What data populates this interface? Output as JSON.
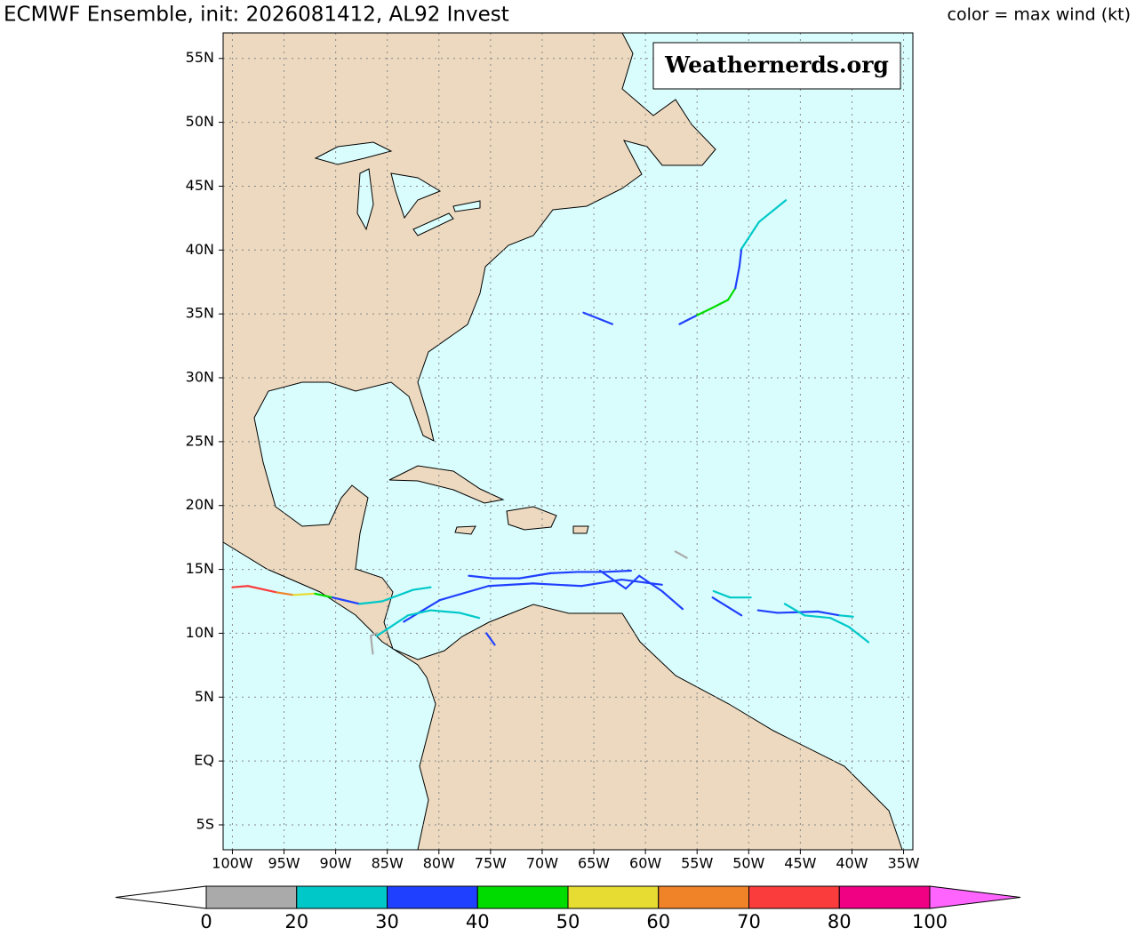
{
  "map": {
    "title": "ECMWF Ensemble, init: 2026081412, AL92 Invest",
    "legend_title": "color = max wind (kt)",
    "watermark": "Weathernerds.org",
    "xlim": [
      -100.9,
      -34.1
    ],
    "ylim": [
      -6.95,
      57.0
    ],
    "grid": true,
    "xticks": [
      {
        "value": -100,
        "label": "100W"
      },
      {
        "value": -95,
        "label": "95W"
      },
      {
        "value": -90,
        "label": "90W"
      },
      {
        "value": -85,
        "label": "85W"
      },
      {
        "value": -80,
        "label": "80W"
      },
      {
        "value": -75,
        "label": "75W"
      },
      {
        "value": -70,
        "label": "70W"
      },
      {
        "value": -65,
        "label": "65W"
      },
      {
        "value": -60,
        "label": "60W"
      },
      {
        "value": -55,
        "label": "55W"
      },
      {
        "value": -50,
        "label": "50W"
      },
      {
        "value": -45,
        "label": "45W"
      },
      {
        "value": -40,
        "label": "40W"
      },
      {
        "value": -35,
        "label": "35W"
      }
    ],
    "yticks": [
      {
        "value": -5,
        "label": "5S"
      },
      {
        "value": 0,
        "label": "EQ"
      },
      {
        "value": 5,
        "label": "5N"
      },
      {
        "value": 10,
        "label": "10N"
      },
      {
        "value": 15,
        "label": "15N"
      },
      {
        "value": 20,
        "label": "20N"
      },
      {
        "value": 25,
        "label": "25N"
      },
      {
        "value": 30,
        "label": "30N"
      },
      {
        "value": 35,
        "label": "35N"
      },
      {
        "value": 40,
        "label": "40N"
      },
      {
        "value": 45,
        "label": "45N"
      },
      {
        "value": 50,
        "label": "50N"
      },
      {
        "value": 55,
        "label": "55N"
      }
    ],
    "colorbar": {
      "bounds": [
        0,
        20,
        30,
        40,
        50,
        60,
        70,
        80,
        100
      ],
      "colors": [
        "#aaaaaa",
        "#00c8c8",
        "#2040ff",
        "#00dc00",
        "#e6dc32",
        "#f08228",
        "#fa3c3c",
        "#f00082"
      ],
      "under_color": "#ffffff",
      "over_color": "#ff64ff"
    },
    "tracks": [
      {
        "lon": [
          -100.0,
          -98.5,
          -95.7,
          -94.1,
          -92.0,
          -90.3,
          -87.7,
          -85.5,
          -82.5,
          -80.8
        ],
        "lat": [
          13.6,
          13.7,
          13.2,
          13.0,
          13.1,
          12.8,
          12.3,
          12.5,
          13.4,
          13.6
        ],
        "wind": [
          75,
          75,
          65,
          55,
          45,
          35,
          25,
          25,
          25,
          25
        ]
      },
      {
        "lon": [
          -77.1,
          -74.8,
          -72.2,
          -69.2,
          -66.6,
          -64.0,
          -61.4
        ],
        "lat": [
          14.5,
          14.3,
          14.3,
          14.7,
          14.8,
          14.8,
          14.9
        ],
        "wind": [
          35,
          35,
          35,
          35,
          35,
          35,
          35
        ]
      },
      {
        "lon": [
          -83.4,
          -79.9,
          -75.2,
          -70.9,
          -66.2,
          -62.3,
          -58.4
        ],
        "lat": [
          10.9,
          12.6,
          13.7,
          13.9,
          13.7,
          14.2,
          13.8
        ],
        "wind": [
          35,
          35,
          35,
          35,
          35,
          35,
          35
        ]
      },
      {
        "lon": [
          -86.0,
          -83.0,
          -80.8,
          -78.0,
          -76.1
        ],
        "lat": [
          9.8,
          11.4,
          11.8,
          11.6,
          11.2
        ],
        "wind": [
          25,
          25,
          25,
          25,
          25
        ]
      },
      {
        "lon": [
          -86.4,
          -86.6,
          -86.0
        ],
        "lat": [
          8.4,
          9.8,
          10.0
        ],
        "wind": [
          15,
          15,
          25
        ]
      },
      {
        "lon": [
          -75.4,
          -74.6
        ],
        "lat": [
          10.0,
          9.1
        ],
        "wind": [
          35,
          35
        ]
      },
      {
        "lon": [
          -64.4,
          -61.9,
          -60.6,
          -58.4,
          -56.4
        ],
        "lat": [
          14.9,
          13.5,
          14.5,
          13.3,
          11.9
        ],
        "wind": [
          35,
          35,
          35,
          35,
          35
        ]
      },
      {
        "lon": [
          -57.1,
          -56.0
        ],
        "lat": [
          16.4,
          15.9
        ],
        "wind": [
          15,
          15
        ]
      },
      {
        "lon": [
          -53.4,
          -51.8,
          -49.8
        ],
        "lat": [
          13.3,
          12.8,
          12.8
        ],
        "wind": [
          25,
          25,
          25
        ]
      },
      {
        "lon": [
          -53.5,
          -50.7
        ],
        "lat": [
          12.8,
          11.4
        ],
        "wind": [
          35,
          35
        ]
      },
      {
        "lon": [
          -49.1,
          -47.2,
          -43.3,
          -41.2,
          -39.9
        ],
        "lat": [
          11.8,
          11.6,
          11.7,
          11.4,
          11.3
        ],
        "wind": [
          35,
          35,
          35,
          25,
          25
        ]
      },
      {
        "lon": [
          -46.5,
          -44.6,
          -42.1,
          -40.3,
          -38.4
        ],
        "lat": [
          12.3,
          11.4,
          11.2,
          10.5,
          9.3
        ],
        "wind": [
          25,
          25,
          25,
          25,
          25
        ]
      },
      {
        "lon": [
          -56.7,
          -55.0,
          -53.7,
          -52.0,
          -51.3,
          -50.9,
          -50.7,
          -49.0,
          -46.4
        ],
        "lat": [
          34.2,
          34.9,
          35.4,
          36.1,
          37.0,
          38.7,
          40.1,
          42.2,
          43.9
        ],
        "wind": [
          35,
          45,
          45,
          45,
          35,
          35,
          25,
          25,
          25
        ]
      },
      {
        "lon": [
          -66.0,
          -63.2
        ],
        "lat": [
          35.1,
          34.2
        ],
        "wind": [
          35,
          35
        ]
      }
    ]
  }
}
